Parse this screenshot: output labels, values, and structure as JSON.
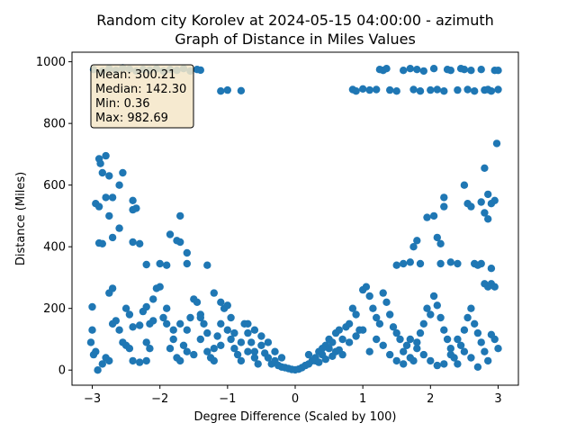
{
  "chart_data": {
    "type": "scatter",
    "title": "Random city Korolev at 2024-05-15 04:00:00  - azimuth",
    "subtitle": "Graph of Distance in Miles Values",
    "xlabel": "Degree Difference (Scaled by 100)",
    "ylabel": "Distance (Miles)",
    "xlim": [
      -3.3,
      3.3
    ],
    "ylim": [
      -49,
      1031
    ],
    "xticks": [
      -3,
      -2,
      -1,
      0,
      1,
      2,
      3
    ],
    "yticks": [
      0,
      200,
      400,
      600,
      800,
      1000
    ],
    "grid": false,
    "point_color": "#1f77b4",
    "stats_box": {
      "lines": [
        "Mean: 300.21",
        "Median: 142.30",
        "Min: 0.36",
        "Max: 982.69"
      ],
      "facecolor": "#f5e6c8",
      "placement": "top-left"
    },
    "series": [
      {
        "points": [
          [
            -2.98,
            975
          ],
          [
            -2.85,
            970
          ],
          [
            -2.75,
            978
          ],
          [
            -2.65,
            972
          ],
          [
            -2.55,
            980
          ],
          [
            -2.45,
            976
          ],
          [
            -2.35,
            970
          ],
          [
            -2.25,
            975
          ],
          [
            -2.15,
            973
          ],
          [
            -2.05,
            977
          ],
          [
            -1.95,
            970
          ],
          [
            -1.85,
            975
          ],
          [
            -1.75,
            972
          ],
          [
            -1.65,
            978
          ],
          [
            -1.55,
            970
          ],
          [
            -1.45,
            975
          ],
          [
            -1.4,
            973
          ],
          [
            -1.1,
            905
          ],
          [
            -1.0,
            908
          ],
          [
            -0.8,
            906
          ],
          [
            0.85,
            910
          ],
          [
            0.9,
            905
          ],
          [
            1.0,
            912
          ],
          [
            1.1,
            908
          ],
          [
            1.2,
            910
          ],
          [
            1.25,
            975
          ],
          [
            1.3,
            972
          ],
          [
            1.35,
            978
          ],
          [
            1.4,
            908
          ],
          [
            1.5,
            905
          ],
          [
            1.6,
            972
          ],
          [
            1.7,
            978
          ],
          [
            1.75,
            910
          ],
          [
            1.8,
            975
          ],
          [
            1.85,
            905
          ],
          [
            1.9,
            970
          ],
          [
            2.0,
            908
          ],
          [
            2.05,
            978
          ],
          [
            2.1,
            910
          ],
          [
            2.2,
            905
          ],
          [
            2.25,
            975
          ],
          [
            2.3,
            972
          ],
          [
            2.4,
            908
          ],
          [
            2.45,
            978
          ],
          [
            2.5,
            975
          ],
          [
            2.55,
            910
          ],
          [
            2.6,
            972
          ],
          [
            2.65,
            905
          ],
          [
            2.75,
            975
          ],
          [
            2.8,
            908
          ],
          [
            2.85,
            910
          ],
          [
            2.9,
            905
          ],
          [
            2.95,
            972
          ],
          [
            3.0,
            910
          ],
          [
            3.0,
            972
          ],
          [
            -2.9,
            685
          ],
          [
            -2.88,
            670
          ],
          [
            -2.8,
            695
          ],
          [
            -2.85,
            640
          ],
          [
            -2.75,
            630
          ],
          [
            -2.55,
            640
          ],
          [
            -2.6,
            600
          ],
          [
            -2.95,
            540
          ],
          [
            -2.9,
            530
          ],
          [
            -2.8,
            560
          ],
          [
            -2.7,
            560
          ],
          [
            -2.75,
            500
          ],
          [
            -2.6,
            460
          ],
          [
            -2.4,
            550
          ],
          [
            -2.35,
            525
          ],
          [
            -2.4,
            520
          ],
          [
            -2.3,
            410
          ],
          [
            -2.4,
            415
          ],
          [
            -2.9,
            412
          ],
          [
            -2.85,
            410
          ],
          [
            -2.7,
            430
          ],
          [
            -1.7,
            500
          ],
          [
            -1.85,
            440
          ],
          [
            -1.7,
            415
          ],
          [
            -1.75,
            420
          ],
          [
            -1.6,
            380
          ],
          [
            -1.6,
            345
          ],
          [
            -1.9,
            340
          ],
          [
            -2.0,
            345
          ],
          [
            -1.3,
            340
          ],
          [
            -2.2,
            342
          ],
          [
            -3.0,
            205
          ],
          [
            -3.0,
            130
          ],
          [
            -3.02,
            90
          ],
          [
            -2.98,
            50
          ],
          [
            -2.95,
            60
          ],
          [
            -2.92,
            0
          ],
          [
            -2.85,
            20
          ],
          [
            -2.8,
            40
          ],
          [
            -2.75,
            30
          ],
          [
            -2.7,
            265
          ],
          [
            -2.75,
            250
          ],
          [
            -2.65,
            160
          ],
          [
            -2.7,
            150
          ],
          [
            -2.6,
            130
          ],
          [
            -2.55,
            90
          ],
          [
            -2.5,
            80
          ],
          [
            -2.45,
            70
          ],
          [
            -2.4,
            30
          ],
          [
            -2.3,
            25
          ],
          [
            -2.2,
            30
          ],
          [
            -2.2,
            90
          ],
          [
            -2.15,
            70
          ],
          [
            -2.3,
            145
          ],
          [
            -2.15,
            150
          ],
          [
            -2.2,
            205
          ],
          [
            -2.25,
            190
          ],
          [
            -2.1,
            230
          ],
          [
            -2.05,
            265
          ],
          [
            -2.0,
            270
          ],
          [
            -1.95,
            170
          ],
          [
            -1.9,
            150
          ],
          [
            -1.8,
            130
          ],
          [
            -1.85,
            70
          ],
          [
            -1.75,
            40
          ],
          [
            -1.7,
            30
          ],
          [
            -1.65,
            80
          ],
          [
            -1.6,
            130
          ],
          [
            -1.55,
            170
          ],
          [
            -1.5,
            230
          ],
          [
            -1.45,
            220
          ],
          [
            -1.4,
            180
          ],
          [
            -1.35,
            150
          ],
          [
            -1.3,
            120
          ],
          [
            -1.3,
            60
          ],
          [
            -1.25,
            40
          ],
          [
            -1.2,
            70
          ],
          [
            -1.15,
            110
          ],
          [
            -1.1,
            150
          ],
          [
            -1.05,
            200
          ],
          [
            -1.0,
            210
          ],
          [
            -1.0,
            130
          ],
          [
            -0.95,
            100
          ],
          [
            -0.9,
            70
          ],
          [
            -0.85,
            50
          ],
          [
            -0.8,
            30
          ],
          [
            -0.75,
            150
          ],
          [
            -0.7,
            120
          ],
          [
            -0.65,
            90
          ],
          [
            -0.6,
            60
          ],
          [
            -0.55,
            20
          ],
          [
            -0.5,
            80
          ],
          [
            -0.45,
            55
          ],
          [
            -0.4,
            40
          ],
          [
            -0.35,
            20
          ],
          [
            -0.3,
            30
          ],
          [
            -0.25,
            15
          ],
          [
            -0.2,
            10
          ],
          [
            -0.15,
            8
          ],
          [
            -0.1,
            5
          ],
          [
            -0.05,
            2
          ],
          [
            0.0,
            1
          ],
          [
            0.05,
            3
          ],
          [
            0.1,
            8
          ],
          [
            0.15,
            15
          ],
          [
            0.2,
            20
          ],
          [
            0.25,
            30
          ],
          [
            0.3,
            40
          ],
          [
            0.35,
            60
          ],
          [
            0.4,
            50
          ],
          [
            0.45,
            80
          ],
          [
            0.5,
            70
          ],
          [
            0.55,
            90
          ],
          [
            0.6,
            120
          ],
          [
            0.65,
            130
          ],
          [
            0.7,
            100
          ],
          [
            0.75,
            140
          ],
          [
            0.8,
            150
          ],
          [
            0.85,
            200
          ],
          [
            0.9,
            180
          ],
          [
            0.95,
            130
          ],
          [
            1.0,
            260
          ],
          [
            1.05,
            270
          ],
          [
            1.1,
            240
          ],
          [
            1.15,
            200
          ],
          [
            1.2,
            170
          ],
          [
            1.25,
            150
          ],
          [
            1.3,
            250
          ],
          [
            1.35,
            220
          ],
          [
            1.4,
            180
          ],
          [
            1.45,
            140
          ],
          [
            1.5,
            120
          ],
          [
            1.55,
            100
          ],
          [
            1.6,
            60
          ],
          [
            1.65,
            80
          ],
          [
            1.7,
            40
          ],
          [
            1.75,
            30
          ],
          [
            1.8,
            90
          ],
          [
            1.85,
            120
          ],
          [
            1.9,
            150
          ],
          [
            1.95,
            200
          ],
          [
            2.0,
            180
          ],
          [
            2.05,
            240
          ],
          [
            2.1,
            210
          ],
          [
            2.15,
            170
          ],
          [
            2.2,
            130
          ],
          [
            2.25,
            100
          ],
          [
            2.3,
            70
          ],
          [
            2.35,
            40
          ],
          [
            2.4,
            20
          ],
          [
            2.45,
            80
          ],
          [
            2.5,
            130
          ],
          [
            2.55,
            170
          ],
          [
            2.6,
            200
          ],
          [
            2.65,
            150
          ],
          [
            2.7,
            120
          ],
          [
            2.75,
            90
          ],
          [
            2.8,
            60
          ],
          [
            2.85,
            30
          ],
          [
            2.9,
            115
          ],
          [
            2.95,
            100
          ],
          [
            3.0,
            70
          ],
          [
            1.5,
            340
          ],
          [
            1.6,
            345
          ],
          [
            1.7,
            350
          ],
          [
            1.75,
            400
          ],
          [
            1.8,
            420
          ],
          [
            1.85,
            345
          ],
          [
            1.95,
            495
          ],
          [
            2.05,
            500
          ],
          [
            2.1,
            430
          ],
          [
            2.15,
            410
          ],
          [
            2.2,
            560
          ],
          [
            2.2,
            530
          ],
          [
            2.15,
            345
          ],
          [
            2.3,
            350
          ],
          [
            2.4,
            345
          ],
          [
            2.5,
            600
          ],
          [
            2.55,
            540
          ],
          [
            2.6,
            530
          ],
          [
            2.65,
            345
          ],
          [
            2.75,
            545
          ],
          [
            2.8,
            510
          ],
          [
            2.85,
            570
          ],
          [
            2.9,
            540
          ],
          [
            2.85,
            490
          ],
          [
            2.95,
            550
          ],
          [
            2.8,
            655
          ],
          [
            2.98,
            735
          ],
          [
            2.75,
            345
          ],
          [
            2.7,
            340
          ],
          [
            2.9,
            330
          ],
          [
            2.85,
            270
          ],
          [
            2.8,
            280
          ],
          [
            2.9,
            280
          ],
          [
            2.95,
            270
          ],
          [
            -0.7,
            150
          ],
          [
            -0.6,
            130
          ],
          [
            -0.5,
            110
          ],
          [
            -0.4,
            90
          ],
          [
            0.4,
            70
          ],
          [
            0.5,
            100
          ],
          [
            0.6,
            60
          ],
          [
            0.7,
            50
          ],
          [
            0.8,
            90
          ],
          [
            0.9,
            110
          ],
          [
            1.0,
            130
          ],
          [
            1.1,
            60
          ],
          [
            1.2,
            100
          ],
          [
            1.3,
            80
          ],
          [
            1.4,
            50
          ],
          [
            1.5,
            30
          ],
          [
            1.6,
            20
          ],
          [
            1.7,
            100
          ],
          [
            1.8,
            70
          ],
          [
            1.9,
            50
          ],
          [
            2.0,
            30
          ],
          [
            2.1,
            15
          ],
          [
            2.2,
            20
          ],
          [
            2.3,
            50
          ],
          [
            2.4,
            100
          ],
          [
            2.5,
            60
          ],
          [
            2.6,
            40
          ],
          [
            2.7,
            10
          ],
          [
            -1.5,
            50
          ],
          [
            -1.4,
            100
          ],
          [
            -1.2,
            30
          ],
          [
            -1.1,
            80
          ],
          [
            -0.9,
            120
          ],
          [
            -0.8,
            90
          ],
          [
            -0.7,
            60
          ],
          [
            -0.6,
            40
          ],
          [
            -2.5,
            200
          ],
          [
            -2.45,
            180
          ],
          [
            -2.4,
            140
          ],
          [
            -2.1,
            160
          ],
          [
            -1.9,
            200
          ],
          [
            -1.8,
            100
          ],
          [
            -1.7,
            150
          ],
          [
            -1.6,
            60
          ],
          [
            -1.4,
            170
          ],
          [
            -1.2,
            250
          ],
          [
            -1.1,
            220
          ],
          [
            -0.95,
            170
          ],
          [
            -0.3,
            60
          ],
          [
            -0.2,
            40
          ],
          [
            0.2,
            50
          ],
          [
            0.3,
            30
          ],
          [
            0.35,
            25
          ],
          [
            0.45,
            35
          ],
          [
            0.55,
            45
          ],
          [
            0.65,
            65
          ]
        ]
      }
    ]
  }
}
